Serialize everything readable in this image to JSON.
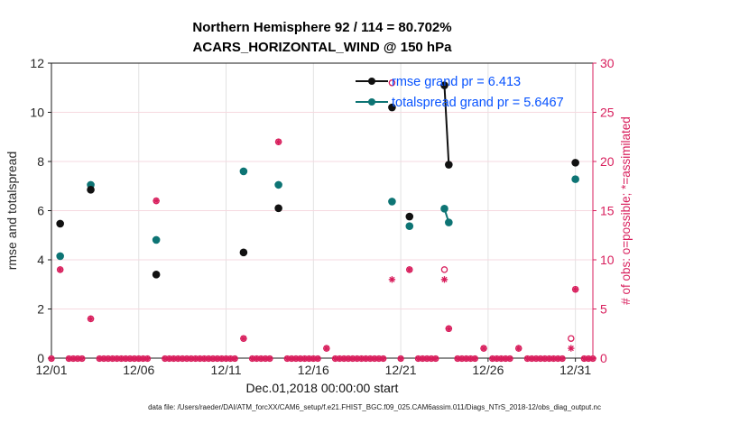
{
  "chart_data": {
    "type": "scatter",
    "title": "Northern Hemisphere 92 / 114 = 80.702%",
    "subtitle": "ACARS_HORIZONTAL_WIND @ 150 hPa",
    "xlabel": "Dec.01,2018 00:00:00 start",
    "ylabel_left": "rmse and totalspread",
    "ylabel_right": "# of obs: o=possible; *=assimilated",
    "caption": "data file: /Users/raeder/DAI/ATM_forcXX/CAM6_setup/f.e21.FHIST_BGC.f09_025.CAM6assim.011/Diags_NTrS_2018-12/obs_diag_output.nc",
    "x_axis": {
      "range_days": [
        0,
        31
      ],
      "ticks": [
        {
          "day": 0,
          "label": "12/01"
        },
        {
          "day": 5,
          "label": "12/06"
        },
        {
          "day": 10,
          "label": "12/11"
        },
        {
          "day": 15,
          "label": "12/16"
        },
        {
          "day": 20,
          "label": "12/21"
        },
        {
          "day": 25,
          "label": "12/26"
        },
        {
          "day": 30,
          "label": "12/31"
        }
      ]
    },
    "y_left": {
      "range": [
        0,
        12
      ],
      "ticks": [
        0,
        2,
        4,
        6,
        8,
        10,
        12
      ],
      "grid_at": [
        2,
        4,
        6,
        8,
        10
      ]
    },
    "y_right": {
      "range": [
        0,
        30
      ],
      "ticks": [
        0,
        5,
        10,
        15,
        20,
        25,
        30
      ]
    },
    "legend": [
      {
        "series": "rmse",
        "label": "rmse grand pr = 6.413"
      },
      {
        "series": "totalspread",
        "label": "totalspread grand pr = 5.6467"
      }
    ],
    "series": {
      "rmse": {
        "axis": "left",
        "marker": "dot",
        "color": "#111111",
        "points": [
          [
            0.5,
            5.47
          ],
          [
            2.25,
            6.85
          ],
          [
            6,
            3.4
          ],
          [
            11,
            4.3
          ],
          [
            13,
            6.1
          ],
          [
            19.5,
            10.2
          ],
          [
            20.5,
            5.76
          ],
          [
            22.5,
            11.1
          ],
          [
            22.75,
            7.87
          ],
          [
            30,
            7.95
          ]
        ]
      },
      "totalspread": {
        "axis": "left",
        "marker": "dot",
        "color": "#0d7474",
        "points": [
          [
            0.5,
            4.15
          ],
          [
            2.25,
            7.05
          ],
          [
            6,
            4.81
          ],
          [
            11,
            7.6
          ],
          [
            13,
            7.05
          ],
          [
            19.5,
            6.37
          ],
          [
            20.5,
            5.37
          ],
          [
            22.5,
            6.08
          ],
          [
            22.75,
            5.52
          ],
          [
            30,
            7.28
          ]
        ]
      },
      "possible": {
        "axis": "right",
        "marker": "circle",
        "color": "#d81e5c",
        "points": [
          [
            0.5,
            9
          ],
          [
            2.25,
            4
          ],
          [
            6,
            16
          ],
          [
            11,
            2
          ],
          [
            13,
            22
          ],
          [
            15.75,
            1
          ],
          [
            19.5,
            28
          ],
          [
            20.5,
            9
          ],
          [
            22.5,
            9
          ],
          [
            22.75,
            3
          ],
          [
            24.75,
            1
          ],
          [
            26.75,
            1
          ],
          [
            29.75,
            2
          ],
          [
            30,
            7
          ]
        ]
      },
      "assimilated": {
        "axis": "right",
        "marker": "asterisk",
        "color": "#d81e5c",
        "points": [
          [
            0.5,
            9
          ],
          [
            2.25,
            4
          ],
          [
            6,
            16
          ],
          [
            11,
            2
          ],
          [
            13,
            22
          ],
          [
            15.75,
            1
          ],
          [
            19.5,
            8
          ],
          [
            20.5,
            9
          ],
          [
            22.5,
            8
          ],
          [
            22.75,
            3
          ],
          [
            24.75,
            1
          ],
          [
            26.75,
            1
          ],
          [
            29.75,
            1
          ],
          [
            30,
            7
          ]
        ]
      }
    },
    "zero_obs_row": {
      "start_day": 0,
      "end_day": 31,
      "step_day": 0.25,
      "value": 0,
      "skip_radius_day": 0.26,
      "markers": [
        "circle",
        "asterisk"
      ]
    },
    "connect_max_gap_days": 0.3,
    "colors": {
      "left_axis": "#1a1a1a",
      "right_axis": "#d81e5c",
      "pink": "#d81e5c",
      "teal": "#0d7474",
      "grid_h": "#f6d9e0",
      "grid_v": "#e2e2e2",
      "legend_text": "#0652ff",
      "tick_label": "#262626"
    }
  }
}
